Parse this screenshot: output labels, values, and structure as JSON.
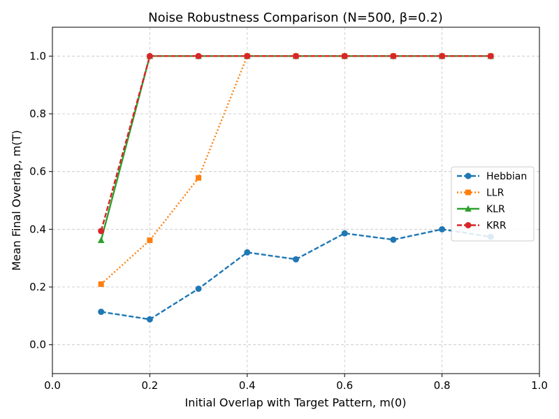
{
  "chart_data": {
    "type": "line",
    "title": "Noise Robustness Comparison (N=500, β=0.2)",
    "xlabel": "Initial Overlap with Target Pattern, m(0)",
    "ylabel": "Mean Final Overlap, m(T)",
    "xlim": [
      0.0,
      1.0
    ],
    "ylim": [
      -0.1,
      1.1
    ],
    "xticks": [
      0.0,
      0.2,
      0.4,
      0.6,
      0.8,
      1.0
    ],
    "yticks": [
      0.0,
      0.2,
      0.4,
      0.6,
      0.8,
      1.0
    ],
    "xtick_labels": [
      "0.0",
      "0.2",
      "0.4",
      "0.6",
      "0.8",
      "1.0"
    ],
    "ytick_labels": [
      "0.0",
      "0.2",
      "0.4",
      "0.6",
      "0.8",
      "1.0"
    ],
    "grid": true,
    "legend_position": "center-right",
    "x": [
      0.1,
      0.2,
      0.3,
      0.4,
      0.5,
      0.6,
      0.7,
      0.8,
      0.9
    ],
    "series": [
      {
        "name": "Hebbian",
        "color": "#1f77b4",
        "linestyle": "dashed",
        "marker": "circle",
        "x": [
          0.1,
          0.2,
          0.3,
          0.4,
          0.5,
          0.6,
          0.7,
          0.8,
          0.9
        ],
        "values": [
          0.114,
          0.088,
          0.194,
          0.32,
          0.296,
          0.386,
          0.364,
          0.4,
          0.374
        ]
      },
      {
        "name": "LLR",
        "color": "#ff7f0e",
        "linestyle": "dotted",
        "marker": "square",
        "x": [
          0.1,
          0.2,
          0.3,
          0.4,
          0.5,
          0.6,
          0.7,
          0.8,
          0.9
        ],
        "values": [
          0.21,
          0.362,
          0.578,
          1.0,
          1.0,
          1.0,
          1.0,
          1.0,
          1.0
        ]
      },
      {
        "name": "KLR",
        "color": "#2ca02c",
        "linestyle": "solid",
        "marker": "triangle",
        "x": [
          0.1,
          0.2,
          0.3,
          0.4,
          0.5,
          0.6,
          0.7,
          0.8,
          0.9
        ],
        "values": [
          0.362,
          1.0,
          1.0,
          1.0,
          1.0,
          1.0,
          1.0,
          1.0,
          1.0
        ]
      },
      {
        "name": "KRR",
        "color": "#d62728",
        "linestyle": "dashed",
        "marker": "circle",
        "x": [
          0.1,
          0.2,
          0.3,
          0.4,
          0.5,
          0.6,
          0.7,
          0.8,
          0.9
        ],
        "values": [
          0.394,
          1.0,
          1.0,
          1.0,
          1.0,
          1.0,
          1.0,
          1.0,
          1.0
        ]
      }
    ]
  }
}
